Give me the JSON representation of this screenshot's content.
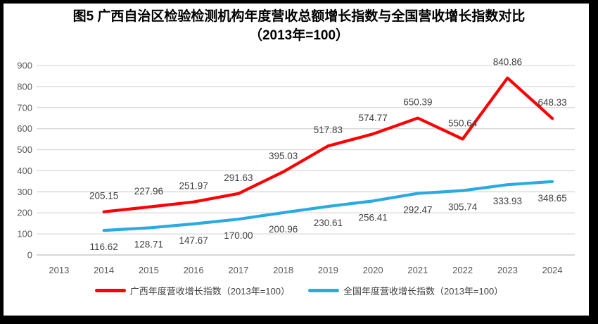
{
  "figure": {
    "frame_color": "#000000",
    "background_color": "#FFFFFF",
    "gridline_color": "#D9D9D9",
    "axis_line_color": "#BFBFBF",
    "tick_label_color": "#595959",
    "data_label_color": "#404040"
  },
  "chart_data": {
    "type": "line",
    "title": "图5  广西自治区检验检测机构年度营收总额增长指数与全国营收增长指数对比（2013年=100）",
    "xlabel": "",
    "ylabel": "",
    "ylim": [
      0,
      900
    ],
    "ytick_step": 100,
    "grid": true,
    "legend_position": "bottom",
    "categories": [
      "2013",
      "2014",
      "2015",
      "2016",
      "2017",
      "2018",
      "2019",
      "2020",
      "2021",
      "2022",
      "2023",
      "2024"
    ],
    "series": [
      {
        "name": "广西年度营收增长指数（2013年=100）",
        "color": "#FF0000",
        "label_side": "above",
        "values": [
          null,
          205.15,
          227.96,
          251.97,
          291.63,
          395.03,
          517.83,
          574.77,
          650.39,
          550.64,
          840.86,
          648.33
        ],
        "labels": [
          null,
          "205.15",
          "227.96",
          "251.97",
          "291.63",
          "395.03",
          "517.83",
          "574.77",
          "650.39",
          "550.64",
          "840.86",
          "648.33"
        ]
      },
      {
        "name": "全国年度营收增长指数（2013年=100）",
        "color": "#29ABE2",
        "label_side": "below",
        "values": [
          null,
          116.62,
          128.71,
          147.67,
          170.0,
          200.96,
          230.61,
          256.41,
          292.47,
          305.74,
          333.93,
          348.65
        ],
        "labels": [
          null,
          "116.62",
          "128.71",
          "147.67",
          "170.00",
          "200.96",
          "230.61",
          "256.41",
          "292.47",
          "305.74",
          "333.93",
          "348.65"
        ]
      }
    ]
  }
}
